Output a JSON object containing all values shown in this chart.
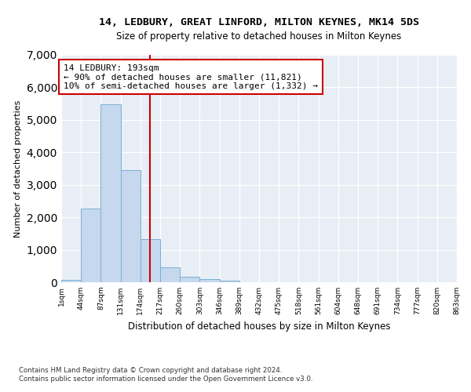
{
  "title1": "14, LEDBURY, GREAT LINFORD, MILTON KEYNES, MK14 5DS",
  "title2": "Size of property relative to detached houses in Milton Keynes",
  "xlabel": "Distribution of detached houses by size in Milton Keynes",
  "ylabel": "Number of detached properties",
  "bar_values": [
    75,
    2280,
    5480,
    3450,
    1320,
    470,
    160,
    90,
    50,
    0,
    0,
    0,
    0,
    0,
    0,
    0,
    0,
    0,
    0,
    0
  ],
  "bar_labels": [
    "1sqm",
    "44sqm",
    "87sqm",
    "131sqm",
    "174sqm",
    "217sqm",
    "260sqm",
    "303sqm",
    "346sqm",
    "389sqm",
    "432sqm",
    "475sqm",
    "518sqm",
    "561sqm",
    "604sqm",
    "648sqm",
    "691sqm",
    "734sqm",
    "777sqm",
    "820sqm",
    "863sqm"
  ],
  "bar_color": "#c5d8ee",
  "bar_edge_color": "#7aafd4",
  "vline_x": 4.5,
  "vline_color": "#cc0000",
  "annotation_text": "14 LEDBURY: 193sqm\n← 90% of detached houses are smaller (11,821)\n10% of semi-detached houses are larger (1,332) →",
  "ylim_max": 7000,
  "yticks": [
    0,
    1000,
    2000,
    3000,
    4000,
    5000,
    6000,
    7000
  ],
  "bg_color": "#e8eef5",
  "footnote_line1": "Contains HM Land Registry data © Crown copyright and database right 2024.",
  "footnote_line2": "Contains public sector information licensed under the Open Government Licence v3.0."
}
